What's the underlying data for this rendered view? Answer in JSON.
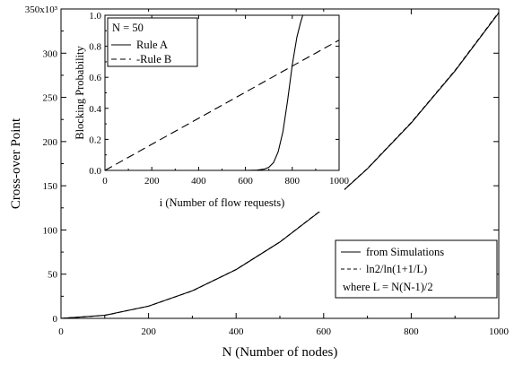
{
  "chart_data": [
    {
      "type": "line",
      "xlabel": "N (Number of nodes)",
      "ylabel": "Cross-over Point",
      "xlim": [
        0,
        1000
      ],
      "ylim": [
        0,
        350000
      ],
      "x_ticks": [
        0,
        200,
        400,
        600,
        800,
        1000
      ],
      "y_ticks": [
        0,
        50000,
        100000,
        150000,
        200000,
        250000,
        300000,
        350000
      ],
      "x_tick_labels": [
        "0",
        "200",
        "400",
        "600",
        "800",
        "1000"
      ],
      "y_tick_labels": [
        "0",
        "50",
        "100",
        "150",
        "200",
        "250",
        "300",
        "350x10³"
      ],
      "grid": false,
      "legend_position": "bottom-right",
      "legend": {
        "line1": "from Simulations",
        "line2": "ln2/ln(1+1/L)",
        "line3": "where L = N(N-1)/2"
      },
      "series": [
        {
          "name": "from Simulations",
          "style": "solid",
          "x": [
            0,
            100,
            200,
            300,
            400,
            500,
            600,
            700,
            800,
            900,
            1000
          ],
          "y": [
            0,
            3400,
            13800,
            31100,
            55200,
            86300,
            124300,
            169300,
            221100,
            279900,
            345600
          ]
        },
        {
          "name": "ln2/ln(1+1/L)",
          "style": "dashed",
          "x": [
            0,
            100,
            200,
            300,
            400,
            500,
            600,
            700,
            800,
            900,
            1000
          ],
          "y": [
            0,
            3431,
            13791,
            31086,
            55313,
            86471,
            124560,
            169581,
            221532,
            280415,
            346230
          ]
        }
      ]
    },
    {
      "type": "line",
      "xlabel": "i (Number of flow requests)",
      "ylabel": "Blocking Probability",
      "xlim": [
        0,
        1000
      ],
      "ylim": [
        0,
        1.0
      ],
      "x_ticks": [
        0,
        200,
        400,
        600,
        800,
        1000
      ],
      "y_ticks": [
        0.0,
        0.2,
        0.4,
        0.6,
        0.8,
        1.0
      ],
      "x_tick_labels": [
        "0",
        "200",
        "400",
        "600",
        "800",
        "1000"
      ],
      "y_tick_labels": [
        "0.0",
        "0.2",
        "0.4",
        "0.6",
        "0.8",
        "1.0"
      ],
      "grid": false,
      "legend_position": "top-left",
      "legend": {
        "title": "N = 50",
        "line1": "Rule A",
        "line2": "-Rule B"
      },
      "series": [
        {
          "name": "Rule A",
          "style": "solid",
          "x": [
            0,
            600,
            650,
            680,
            700,
            720,
            740,
            760,
            780,
            800,
            820,
            835,
            845
          ],
          "y": [
            0,
            0,
            0.002,
            0.008,
            0.02,
            0.05,
            0.12,
            0.25,
            0.45,
            0.68,
            0.86,
            0.95,
            1.0
          ]
        },
        {
          "name": "Rule B",
          "style": "dashed",
          "x": [
            0,
            200,
            400,
            600,
            800,
            1000
          ],
          "y": [
            0,
            0.168,
            0.336,
            0.504,
            0.672,
            0.84
          ]
        }
      ]
    }
  ]
}
